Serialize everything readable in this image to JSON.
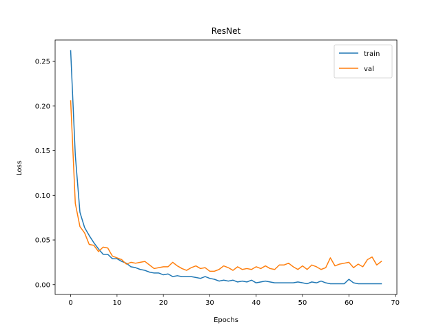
{
  "chart_data": {
    "type": "line",
    "title": "ResNet",
    "xlabel": "Epochs",
    "ylabel": "Loss",
    "xlim": [
      -3.35,
      70.35
    ],
    "ylim": [
      -0.011,
      0.274
    ],
    "xticks": [
      0,
      10,
      20,
      30,
      40,
      50,
      60,
      70
    ],
    "yticks": [
      0.0,
      0.05,
      0.1,
      0.15,
      0.2,
      0.25
    ],
    "xtick_labels": [
      "0",
      "10",
      "20",
      "30",
      "40",
      "50",
      "60",
      "70"
    ],
    "ytick_labels": [
      "0.00",
      "0.05",
      "0.10",
      "0.15",
      "0.20",
      "0.25"
    ],
    "grid": false,
    "legend_position": "top-right",
    "series": [
      {
        "name": "train",
        "color": "#1f77b4",
        "x": [
          0,
          1,
          2,
          3,
          4,
          5,
          6,
          7,
          8,
          9,
          10,
          11,
          12,
          13,
          14,
          15,
          16,
          17,
          18,
          19,
          20,
          21,
          22,
          23,
          24,
          25,
          26,
          27,
          28,
          29,
          30,
          31,
          32,
          33,
          34,
          35,
          36,
          37,
          38,
          39,
          40,
          41,
          42,
          43,
          44,
          45,
          46,
          47,
          48,
          49,
          50,
          51,
          52,
          53,
          54,
          55,
          56,
          57,
          58,
          59,
          60,
          61,
          62,
          63,
          64,
          65,
          66,
          67
        ],
        "values": [
          0.262,
          0.145,
          0.081,
          0.064,
          0.055,
          0.047,
          0.04,
          0.034,
          0.034,
          0.029,
          0.029,
          0.026,
          0.024,
          0.02,
          0.019,
          0.017,
          0.016,
          0.014,
          0.013,
          0.013,
          0.011,
          0.012,
          0.009,
          0.01,
          0.009,
          0.009,
          0.009,
          0.008,
          0.007,
          0.009,
          0.007,
          0.006,
          0.004,
          0.005,
          0.004,
          0.005,
          0.003,
          0.004,
          0.003,
          0.005,
          0.002,
          0.003,
          0.004,
          0.003,
          0.002,
          0.002,
          0.002,
          0.002,
          0.002,
          0.003,
          0.002,
          0.001,
          0.003,
          0.002,
          0.004,
          0.002,
          0.001,
          0.001,
          0.001,
          0.001,
          0.006,
          0.002,
          0.001,
          0.001,
          0.001,
          0.001,
          0.001,
          0.001
        ]
      },
      {
        "name": "val",
        "color": "#ff7f0e",
        "x": [
          0,
          1,
          2,
          3,
          4,
          5,
          6,
          7,
          8,
          9,
          10,
          11,
          12,
          13,
          14,
          15,
          16,
          17,
          18,
          19,
          20,
          21,
          22,
          23,
          24,
          25,
          26,
          27,
          28,
          29,
          30,
          31,
          32,
          33,
          34,
          35,
          36,
          37,
          38,
          39,
          40,
          41,
          42,
          43,
          44,
          45,
          46,
          47,
          48,
          49,
          50,
          51,
          52,
          53,
          54,
          55,
          56,
          57,
          58,
          59,
          60,
          61,
          62,
          63,
          64,
          65,
          66,
          67
        ],
        "values": [
          0.206,
          0.091,
          0.065,
          0.058,
          0.045,
          0.044,
          0.037,
          0.042,
          0.041,
          0.032,
          0.03,
          0.028,
          0.023,
          0.025,
          0.024,
          0.025,
          0.026,
          0.022,
          0.018,
          0.019,
          0.02,
          0.02,
          0.025,
          0.021,
          0.018,
          0.016,
          0.019,
          0.021,
          0.018,
          0.019,
          0.015,
          0.015,
          0.017,
          0.021,
          0.019,
          0.016,
          0.02,
          0.017,
          0.018,
          0.017,
          0.02,
          0.018,
          0.021,
          0.018,
          0.017,
          0.022,
          0.022,
          0.024,
          0.02,
          0.017,
          0.021,
          0.017,
          0.022,
          0.02,
          0.017,
          0.019,
          0.03,
          0.021,
          0.023,
          0.024,
          0.025,
          0.019,
          0.023,
          0.02,
          0.028,
          0.031,
          0.022,
          0.026
        ]
      }
    ]
  }
}
